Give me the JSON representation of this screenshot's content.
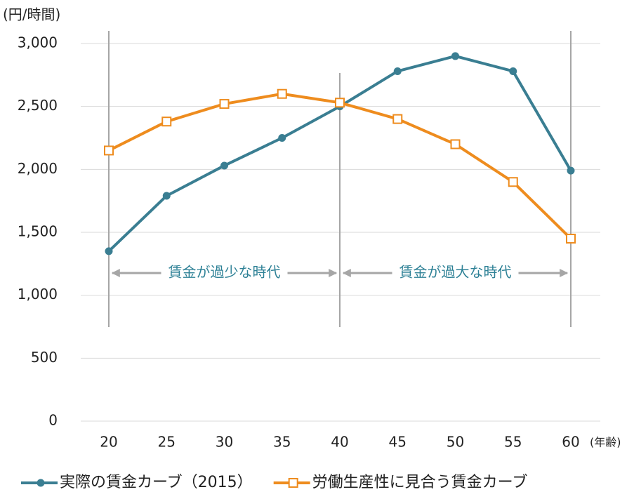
{
  "chart_data": {
    "type": "line",
    "y_label": "(円/時間)",
    "x_label": "(年齢)",
    "categories": [
      "20",
      "25",
      "30",
      "35",
      "40",
      "45",
      "50",
      "55",
      "60"
    ],
    "series": [
      {
        "name": "実際の賃金カーブ（2015）",
        "color": "#3a7e92",
        "marker": "circle",
        "values": [
          1350,
          1790,
          2030,
          2250,
          2500,
          2780,
          2900,
          2780,
          1990
        ]
      },
      {
        "name": "労働生産性に見合う賃金カーブ",
        "color": "#ee8c1e",
        "marker": "square",
        "values": [
          2150,
          2380,
          2520,
          2600,
          2530,
          2400,
          2200,
          1900,
          1450
        ]
      }
    ],
    "ylim": [
      0,
      3000
    ],
    "yticks": [
      0,
      500,
      {
        "value": 1000,
        "label": "1,000"
      },
      {
        "value": 1500,
        "label": "1,500"
      },
      {
        "value": 2000,
        "label": "2,000"
      },
      {
        "value": 2500,
        "label": "2,500"
      },
      {
        "value": 3000,
        "label": "3,000"
      }
    ],
    "grid": true,
    "annotations": [
      {
        "text": "賃金が過少な時代",
        "from": "20",
        "to": "40"
      },
      {
        "text": "賃金が過大な時代",
        "from": "40",
        "to": "60"
      }
    ],
    "legend": "bottom"
  }
}
